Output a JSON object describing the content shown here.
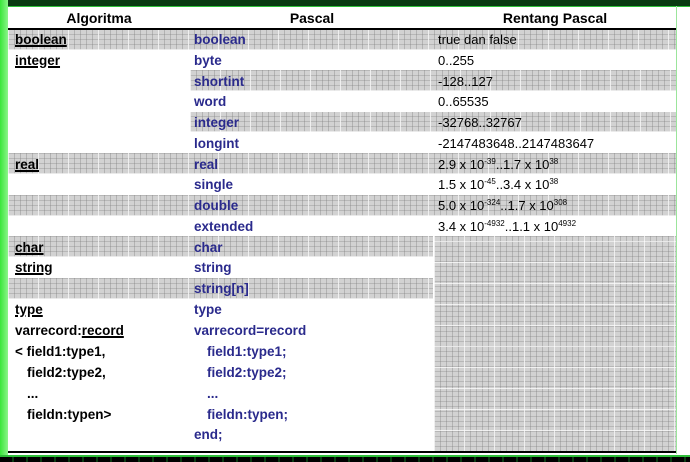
{
  "headers": [
    "Algoritma",
    "Pascal",
    "Rentang Pascal"
  ],
  "rows": [
    {
      "algoritma": "boolean",
      "pascal": "boolean",
      "range": "true dan false"
    },
    {
      "algoritma": "integer",
      "pascal": "byte",
      "range": "0..255"
    },
    {
      "algoritma": "",
      "pascal": "shortint",
      "range": "-128..127"
    },
    {
      "algoritma": "",
      "pascal": "word",
      "range": "0..65535"
    },
    {
      "algoritma": "",
      "pascal": "integer",
      "range": "-32768..32767"
    },
    {
      "algoritma": "",
      "pascal": "longint",
      "range": "-2147483648..2147483647"
    },
    {
      "algoritma": "real",
      "pascal": "real",
      "range": {
        "a": "2.9 x 10",
        "ae": "-39",
        "b": "..1.7 x 10",
        "be": "38"
      }
    },
    {
      "algoritma": "",
      "pascal": "single",
      "range": {
        "a": "1.5 x 10",
        "ae": "-45",
        "b": "..3.4 x 10",
        "be": "38"
      }
    },
    {
      "algoritma": "",
      "pascal": "double",
      "range": {
        "a": "5.0 x 10",
        "ae": "-324",
        "b": "..1.7 x 10",
        "be": "308"
      }
    },
    {
      "algoritma": "",
      "pascal": "extended",
      "range": {
        "a": "3.4 x 10",
        "ae": "-4932",
        "b": "..1.1 x 10",
        "be": "4932"
      }
    },
    {
      "algoritma": "char",
      "pascal": "char"
    },
    {
      "algoritma": "string",
      "pascal": "string"
    },
    {
      "algoritma": "",
      "pascal": "string[n]"
    }
  ],
  "record": {
    "algoritma": [
      "type",
      "varrecord:",
      "record",
      "< field1:type1,",
      "field2:type2,",
      "...",
      "fieldn:typen>"
    ],
    "pascal": [
      "type",
      "varrecord=record",
      "field1:type1;",
      "field2:type2;",
      "...",
      "fieldn:typen;",
      "end;"
    ]
  }
}
